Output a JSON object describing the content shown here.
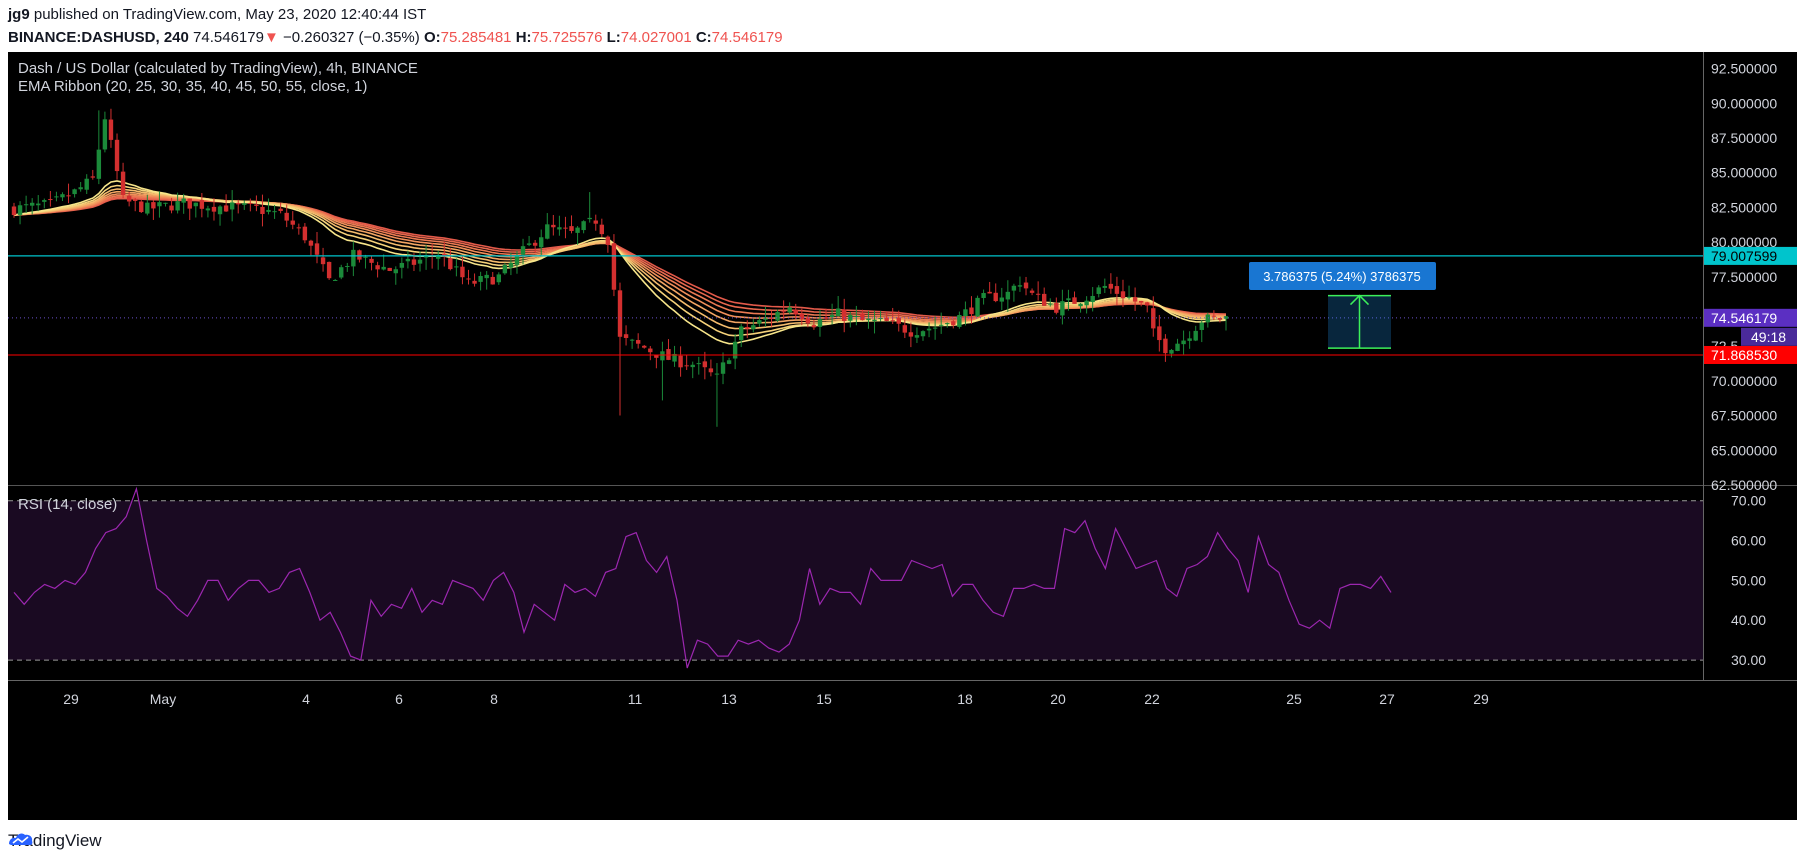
{
  "header": {
    "author": "jg9",
    "published_text": " published on TradingView.com, May 23, 2020 12:40:44 IST",
    "symbol": "BINANCE:DASHUSD, 240",
    "last": "74.546179",
    "change_arrow": "▼",
    "change": "−0.260327 (−0.35%)",
    "o_label": "O:",
    "o_value": "75.285481",
    "h_label": "H:",
    "h_value": "75.725576",
    "l_label": "L:",
    "l_value": "74.027001",
    "c_label": "C:",
    "c_value": "74.546179"
  },
  "legend": {
    "title": "Dash / US Dollar (calculated by TradingView), 4h, BINANCE",
    "ema": "EMA Ribbon (20, 25, 30, 35, 40, 45, 50, 55, close, 1)",
    "rsi": "RSI (14, close)"
  },
  "footer": {
    "brand": "TradingView"
  },
  "colors": {
    "background": "#000000",
    "up": "#1b8a3a",
    "down": "#d32f2f",
    "ema_fast": "#f5e27a",
    "ema_slow": "#e8604c",
    "resistance": "#00c4cc",
    "support": "#ff0000",
    "rsi_line": "#9c27b0",
    "rsi_band": "#1a0a22",
    "measure": "#1976d2"
  },
  "chart_data": [
    {
      "type": "candlestick",
      "title": "Dash / US Dollar (calculated by TradingView), 4h, BINANCE",
      "x_tick_labels": [
        "29",
        "May",
        "4",
        "6",
        "8",
        "11",
        "13",
        "15",
        "18",
        "20",
        "22",
        "25",
        "27",
        "29"
      ],
      "y_tick_labels": [
        "92.500000",
        "90.000000",
        "87.500000",
        "85.000000",
        "82.500000",
        "80.000000",
        "77.500000",
        "72.5",
        "70.000000",
        "67.500000",
        "65.000000",
        "62.500000"
      ],
      "ylim": [
        62.5,
        93.7
      ],
      "horizontal_lines": [
        {
          "label": "79.007599",
          "value": 79.007599
        },
        {
          "label": "71.868530",
          "value": 71.86853
        }
      ],
      "last_price": {
        "label": "74.546179",
        "value": 74.546179,
        "countdown": "49:18"
      },
      "measure": {
        "label": "3.786375 (5.24%) 3786375",
        "low": 72.36,
        "high": 76.15
      },
      "close_points_approx": [
        [
          0,
          82.4
        ],
        [
          6,
          82.7
        ],
        [
          10,
          83.6
        ],
        [
          13,
          84.5
        ],
        [
          15,
          89.0
        ],
        [
          18,
          83.0
        ],
        [
          22,
          82.4
        ],
        [
          28,
          82.8
        ],
        [
          33,
          82.6
        ],
        [
          40,
          82.4
        ],
        [
          44,
          82.0
        ],
        [
          48,
          80.4
        ],
        [
          52,
          77.2
        ],
        [
          56,
          79.0
        ],
        [
          62,
          78.0
        ],
        [
          66,
          78.5
        ],
        [
          70,
          79.2
        ],
        [
          75,
          77.0
        ],
        [
          80,
          77.5
        ],
        [
          84,
          79.3
        ],
        [
          88,
          81.0
        ],
        [
          92,
          80.6
        ],
        [
          96,
          81.6
        ],
        [
          98,
          80.2
        ],
        [
          100,
          73.0
        ],
        [
          104,
          72.4
        ],
        [
          108,
          71.6
        ],
        [
          112,
          71.2
        ],
        [
          116,
          70.2
        ],
        [
          120,
          73.6
        ],
        [
          124,
          74.4
        ],
        [
          128,
          75.4
        ],
        [
          132,
          74.2
        ],
        [
          136,
          74.8
        ],
        [
          140,
          74.3
        ],
        [
          144,
          74.2
        ],
        [
          148,
          73.6
        ],
        [
          152,
          73.9
        ],
        [
          156,
          74.6
        ],
        [
          160,
          75.9
        ],
        [
          164,
          76.3
        ],
        [
          166,
          77.2
        ],
        [
          168,
          76.2
        ],
        [
          172,
          75.3
        ],
        [
          176,
          75.9
        ],
        [
          180,
          76.8
        ],
        [
          184,
          76.0
        ],
        [
          187,
          75.2
        ],
        [
          188,
          73.4
        ],
        [
          190,
          72.4
        ],
        [
          193,
          73.0
        ],
        [
          196,
          74.4
        ],
        [
          200,
          74.55
        ]
      ]
    },
    {
      "type": "line",
      "title": "RSI (14, close)",
      "y_tick_labels": [
        "70.00",
        "60.00",
        "50.00",
        "40.00",
        "30.00"
      ],
      "ylim": [
        25,
        73.7
      ],
      "bands": [
        30,
        70
      ],
      "values": [
        47,
        44,
        47,
        49,
        48,
        50,
        49,
        52,
        58,
        62,
        63,
        66,
        73,
        60,
        48,
        46,
        43,
        41,
        45,
        50,
        50,
        45,
        48,
        50,
        50,
        47,
        48,
        52,
        53,
        47,
        40,
        42,
        37,
        31,
        30,
        45,
        41,
        44,
        43,
        48,
        42,
        45,
        44,
        50,
        49,
        48,
        45,
        50,
        52,
        47,
        37,
        44,
        42,
        40,
        49,
        47,
        48,
        46,
        52,
        53,
        61,
        62,
        55,
        52,
        56,
        45,
        28,
        35,
        34,
        31,
        31,
        35,
        34,
        35,
        33,
        32,
        34,
        40,
        53,
        44,
        48,
        47,
        47,
        44,
        53,
        50,
        50,
        50,
        55,
        54,
        53,
        54,
        46,
        49,
        49,
        45,
        42,
        41,
        48,
        48,
        49,
        48,
        48,
        63,
        62,
        65,
        58,
        53,
        63,
        58,
        53,
        54,
        55,
        48,
        46,
        53,
        54,
        56,
        62,
        58,
        55,
        47,
        61,
        54,
        52,
        45,
        39,
        38,
        40,
        38,
        48,
        49,
        49,
        48,
        51,
        47
      ]
    }
  ]
}
